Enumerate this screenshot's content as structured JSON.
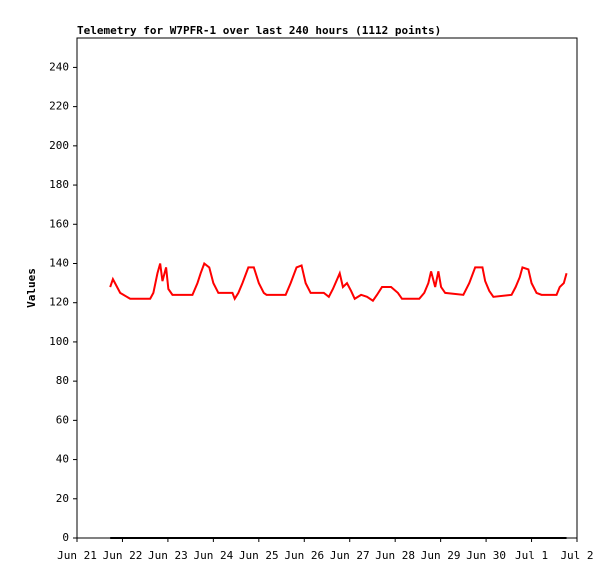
{
  "chart_data": {
    "type": "line",
    "title": "Telemetry for W7PFR-1 over last 240 hours (1112 points)",
    "ylabel": "Values",
    "xlim": [
      0,
      11
    ],
    "ylim": [
      0,
      255
    ],
    "xticks": [
      {
        "value": 0,
        "label": "Jun 21"
      },
      {
        "value": 1,
        "label": "Jun 22"
      },
      {
        "value": 2,
        "label": "Jun 23"
      },
      {
        "value": 3,
        "label": "Jun 24"
      },
      {
        "value": 4,
        "label": "Jun 25"
      },
      {
        "value": 5,
        "label": "Jun 26"
      },
      {
        "value": 6,
        "label": "Jun 27"
      },
      {
        "value": 7,
        "label": "Jun 28"
      },
      {
        "value": 8,
        "label": "Jun 29"
      },
      {
        "value": 9,
        "label": "Jun 30"
      },
      {
        "value": 10,
        "label": "Jul 1"
      },
      {
        "value": 11,
        "label": "Jul 2"
      }
    ],
    "yticks": [
      0,
      20,
      40,
      60,
      80,
      100,
      120,
      140,
      160,
      180,
      200,
      220,
      240
    ],
    "series": [
      {
        "color": "#ff0000",
        "x": [
          0.73,
          0.79,
          0.95,
          1.17,
          1.61,
          1.68,
          1.77,
          1.83,
          1.88,
          1.96,
          2.01,
          2.1,
          2.54,
          2.65,
          2.72,
          2.8,
          2.91,
          3.0,
          3.11,
          3.42,
          3.47,
          3.55,
          3.64,
          3.77,
          3.89,
          4.0,
          4.11,
          4.17,
          4.59,
          4.7,
          4.83,
          4.94,
          5.03,
          5.14,
          5.43,
          5.54,
          5.63,
          5.78,
          5.85,
          5.94,
          6.03,
          6.11,
          6.25,
          6.38,
          6.51,
          6.6,
          6.71,
          6.91,
          7.06,
          7.15,
          7.53,
          7.64,
          7.73,
          7.79,
          7.88,
          7.95,
          8.01,
          8.1,
          8.5,
          8.63,
          8.76,
          8.92,
          8.98,
          9.07,
          9.16,
          9.56,
          9.65,
          9.74,
          9.8,
          9.93,
          10.0,
          10.11,
          10.22,
          10.55,
          10.62,
          10.71,
          10.77
        ],
        "values": [
          128,
          132,
          125,
          122,
          122,
          125,
          135,
          140,
          131,
          138,
          127,
          124,
          124,
          130,
          135,
          140,
          138,
          130,
          125,
          125,
          122,
          125,
          130,
          138,
          138,
          130,
          125,
          124,
          124,
          130,
          138,
          139,
          130,
          125,
          125,
          123,
          127,
          135,
          128,
          130,
          126,
          122,
          124,
          123,
          121,
          124,
          128,
          128,
          125,
          122,
          122,
          125,
          130,
          136,
          128,
          136,
          128,
          125,
          124,
          130,
          138,
          138,
          131,
          126,
          123,
          124,
          128,
          133,
          138,
          137,
          130,
          125,
          124,
          124,
          128,
          130,
          135
        ]
      },
      {
        "color": "#000000",
        "x": [
          0.73,
          10.77
        ],
        "values": [
          0,
          0
        ]
      }
    ]
  }
}
